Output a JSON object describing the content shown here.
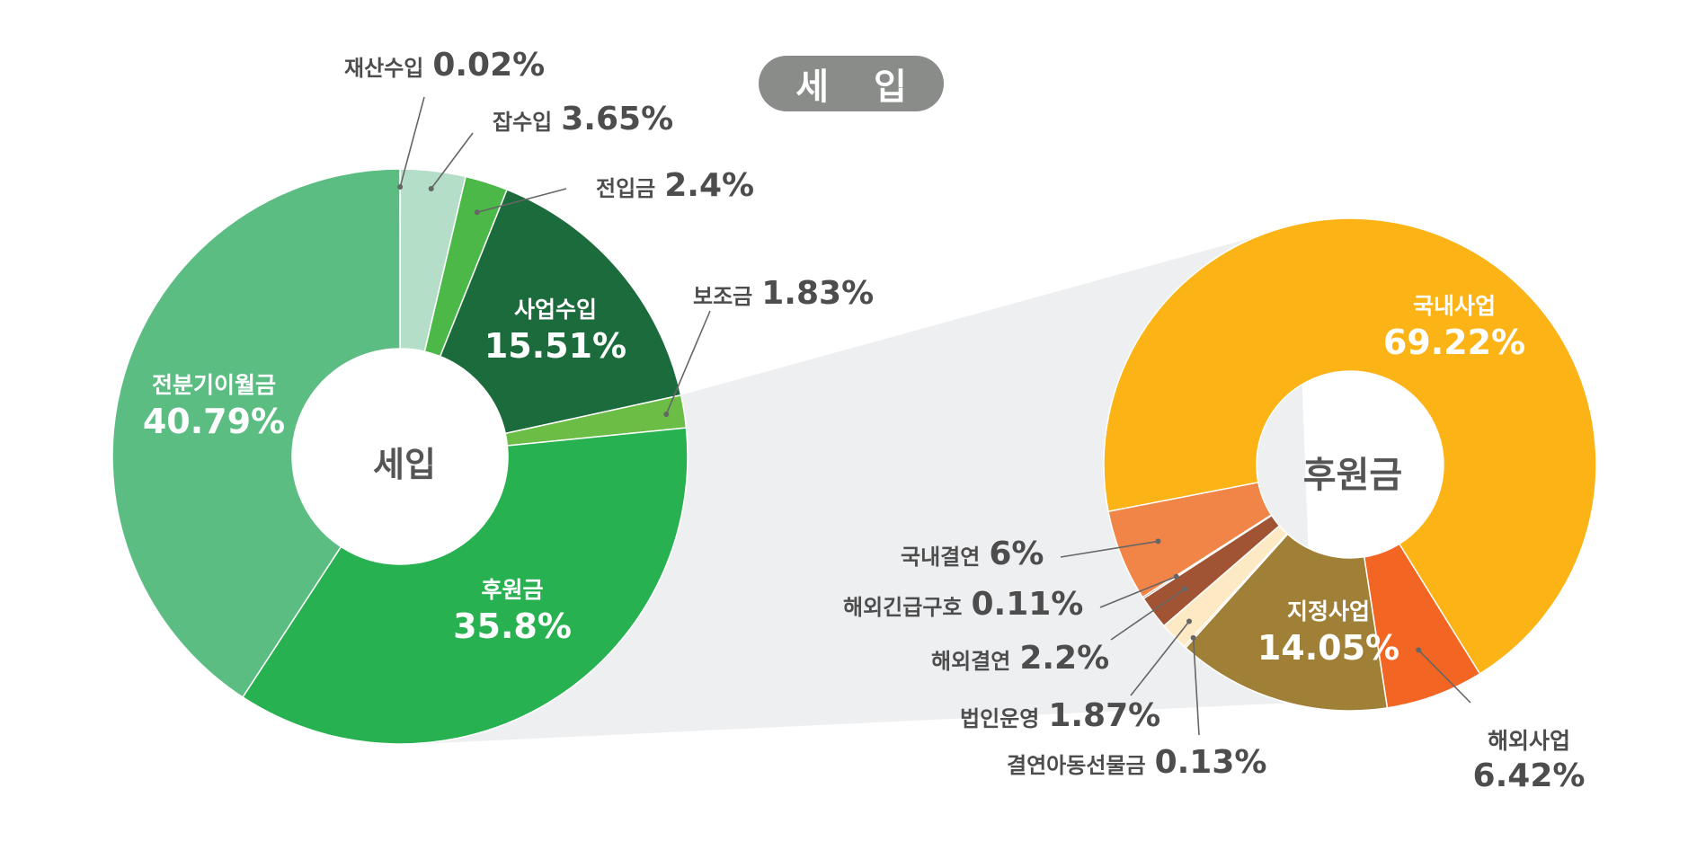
{
  "title": "세 입",
  "colors": {
    "pill": "#8a8c8a",
    "leader": "#666666",
    "connector": "#eeeff1",
    "label_text": "#4d4d4d",
    "inside_text": "#ffffff"
  },
  "chart_data": [
    {
      "type": "pie",
      "variant": "donut",
      "center_label": "세입",
      "series": [
        {
          "name": "재산수입",
          "value": 0.02,
          "label": "0.02%",
          "color": "#b4dec7"
        },
        {
          "name": "잡수입",
          "value": 3.65,
          "label": "3.65%",
          "color": "#b4dec7"
        },
        {
          "name": "전입금",
          "value": 2.4,
          "label": "2.4%",
          "color": "#4cb848"
        },
        {
          "name": "사업수입",
          "value": 15.51,
          "label": "15.51%",
          "color": "#1c6b3c"
        },
        {
          "name": "보조금",
          "value": 1.83,
          "label": "1.83%",
          "color": "#6cbd45"
        },
        {
          "name": "후원금",
          "value": 35.8,
          "label": "35.8%",
          "color": "#28b150"
        },
        {
          "name": "전분기이월금",
          "value": 40.79,
          "label": "40.79%",
          "color": "#5cbd83"
        }
      ]
    },
    {
      "type": "pie",
      "variant": "donut",
      "center_label": "후원금",
      "series": [
        {
          "name": "국내사업",
          "value": 69.22,
          "label": "69.22%",
          "color": "#fcb316"
        },
        {
          "name": "해외사업",
          "value": 6.42,
          "label": "6.42%",
          "color": "#f26523"
        },
        {
          "name": "지정사업",
          "value": 14.05,
          "label": "14.05%",
          "color": "#a08036"
        },
        {
          "name": "결연아동선물금",
          "value": 0.13,
          "label": "0.13%",
          "color": "#f8c98a"
        },
        {
          "name": "법인운영",
          "value": 1.87,
          "label": "1.87%",
          "color": "#fde9c4"
        },
        {
          "name": "해외결연",
          "value": 2.2,
          "label": "2.2%",
          "color": "#a05434"
        },
        {
          "name": "해외긴급구호",
          "value": 0.11,
          "label": "0.11%",
          "color": "#7a3e22"
        },
        {
          "name": "국내결연",
          "value": 6.0,
          "label": "6%",
          "color": "#f18547"
        }
      ]
    }
  ]
}
